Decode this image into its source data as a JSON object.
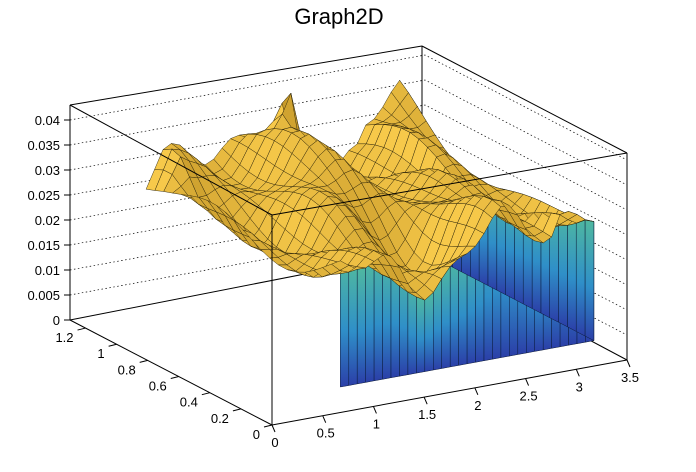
{
  "chart_data": {
    "type": "surface3d",
    "title": "Graph2D",
    "x_axis": {
      "range": [
        0,
        3.5
      ],
      "ticks": [
        "0",
        "0.5",
        "1",
        "1.5",
        "2",
        "2.5",
        "3",
        "3.5"
      ]
    },
    "y_axis": {
      "range": [
        0,
        1.3
      ],
      "ticks": [
        "0",
        "0.2",
        "0.4",
        "0.6",
        "0.8",
        "1",
        "1.2"
      ]
    },
    "z_axis": {
      "range": [
        0,
        0.042
      ],
      "ticks": [
        "0",
        "0.005",
        "0.01",
        "0.015",
        "0.02",
        "0.025",
        "0.03",
        "0.035",
        "0.04"
      ]
    },
    "data_extent": {
      "x": [
        0.75,
        3.25
      ],
      "y": [
        0.05,
        1.3
      ]
    },
    "base_level": 0.02,
    "peak": {
      "x": 1.9,
      "y": 1.15,
      "z": 0.041
    },
    "grid": true,
    "colors": {
      "surface_top": "#f7c94a",
      "surface_dark": "#c79a2a",
      "wall_top": "#4fb8a0",
      "wall_bottom": "#2b3fa8",
      "title": "#000000"
    }
  }
}
